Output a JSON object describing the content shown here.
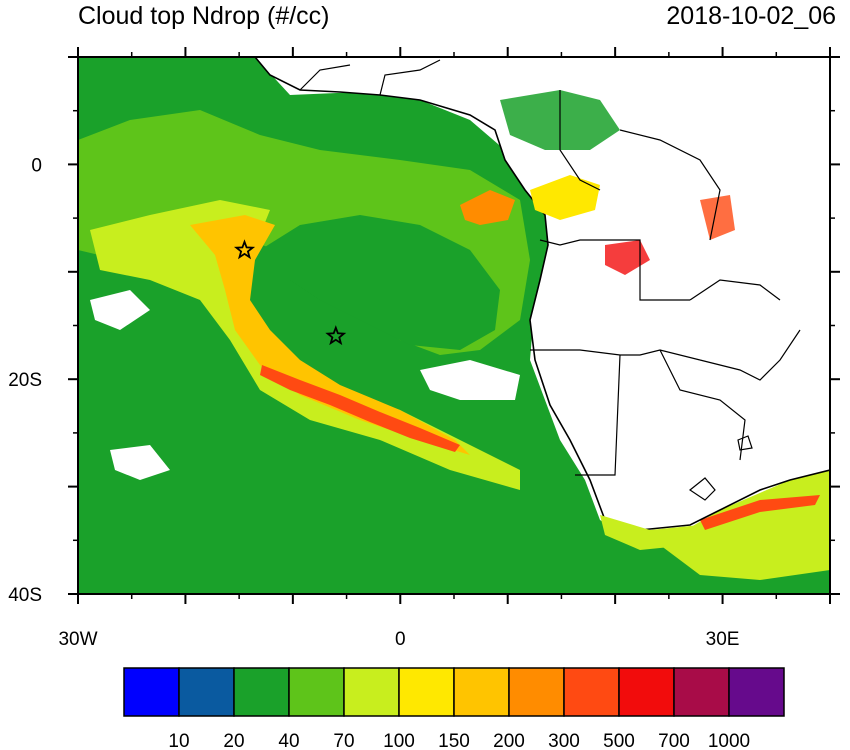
{
  "title": "Cloud top Ndrop (#/cc)",
  "timestamp": "2018-10-02_06",
  "axes": {
    "x_ticks": [
      {
        "value": -30,
        "label": "30W"
      },
      {
        "value": 0,
        "label": "0"
      },
      {
        "value": 30,
        "label": "30E"
      }
    ],
    "y_ticks": [
      {
        "value": 0,
        "label": "0"
      },
      {
        "value": -20,
        "label": "20S"
      },
      {
        "value": -40,
        "label": "40S"
      }
    ],
    "lon_range": [
      -30,
      40
    ],
    "lat_range": [
      -40,
      10
    ],
    "minor_x_step": 10,
    "minor_y_step": 10
  },
  "colorbar": {
    "colors": [
      "#0000ff",
      "#0a5aa0",
      "#1aa12a",
      "#5ec41a",
      "#c8ee1e",
      "#ffe800",
      "#ffc400",
      "#ff8c00",
      "#ff4a12",
      "#f20c0c",
      "#a80c48",
      "#660a8c"
    ],
    "labels": [
      "10",
      "20",
      "40",
      "70",
      "100",
      "150",
      "200",
      "300",
      "500",
      "700",
      "1000"
    ]
  },
  "markers": [
    {
      "name": "star-marker-west",
      "lon": -14.5,
      "lat": -8
    },
    {
      "name": "star-marker-central",
      "lon": -6,
      "lat": -16
    }
  ]
}
